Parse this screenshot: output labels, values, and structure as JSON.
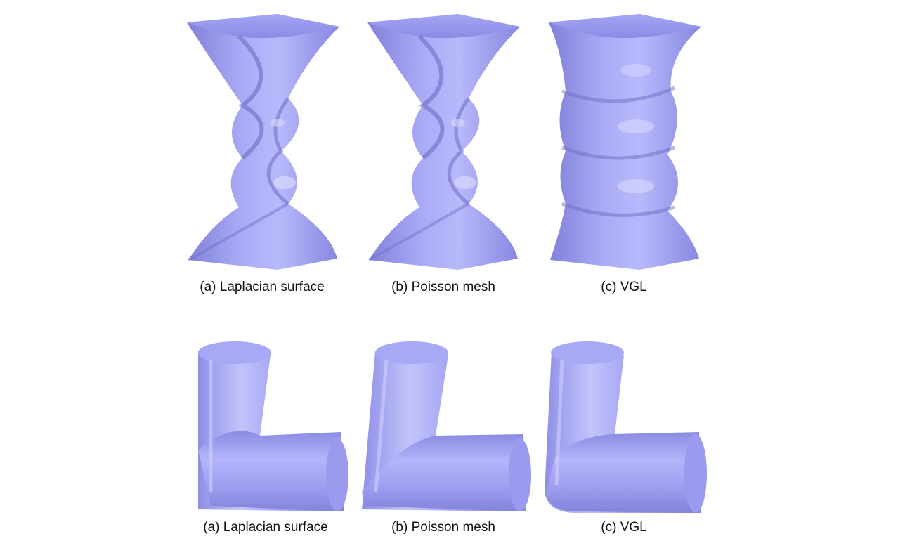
{
  "figure": {
    "mesh_color": "#9b9cf0",
    "rows": [
      {
        "name": "twisted-bar",
        "panels": [
          {
            "label": "(a) Laplacian surface"
          },
          {
            "label": "(b) Poisson mesh"
          },
          {
            "label": "(c) VGL"
          }
        ]
      },
      {
        "name": "bent-cylinder",
        "panels": [
          {
            "label": "(a) Laplacian surface"
          },
          {
            "label": "(b) Poisson mesh"
          },
          {
            "label": "(c) VGL"
          }
        ]
      }
    ]
  }
}
